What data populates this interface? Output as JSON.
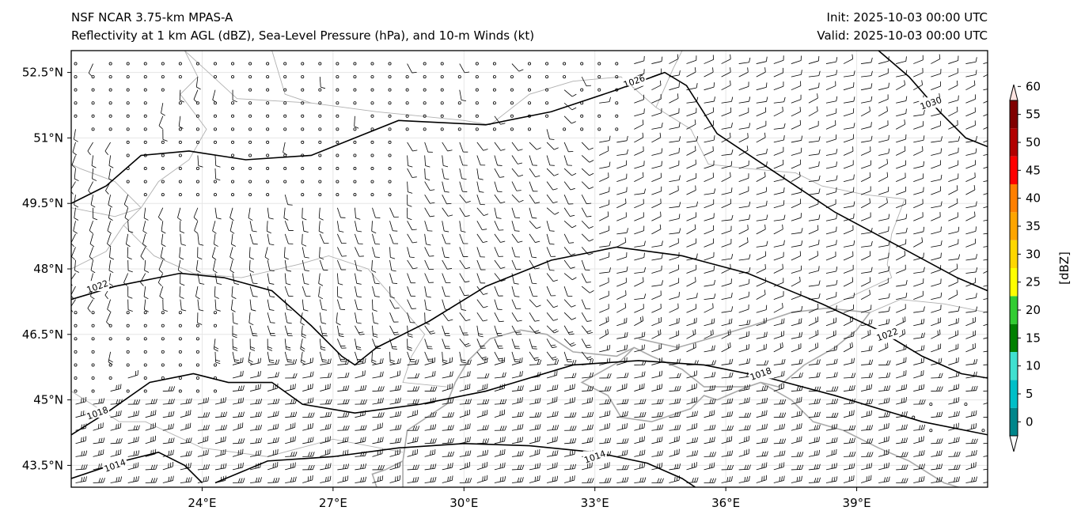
{
  "title": {
    "left_line1": "NSF NCAR 3.75-km MPAS-A",
    "left_line2": "Reflectivity at 1 km AGL (dBZ), Sea-Level Pressure (hPa), and 10-m Winds (kt)",
    "right_line1": "Init: 2025-10-03 00:00 UTC",
    "right_line2": "Valid: 2025-10-03 00:00 UTC"
  },
  "map": {
    "lon_range": [
      21,
      42
    ],
    "lat_range": [
      43,
      53
    ],
    "lat_ticks": [
      {
        "value": 43.5,
        "label": "43.5°N"
      },
      {
        "value": 45.0,
        "label": "45°N"
      },
      {
        "value": 46.5,
        "label": "46.5°N"
      },
      {
        "value": 48.0,
        "label": "48°N"
      },
      {
        "value": 49.5,
        "label": "49.5°N"
      },
      {
        "value": 51.0,
        "label": "51°N"
      },
      {
        "value": 52.5,
        "label": "52.5°N"
      }
    ],
    "lon_ticks": [
      {
        "value": 24,
        "label": "24°E"
      },
      {
        "value": 27,
        "label": "27°E"
      },
      {
        "value": 30,
        "label": "30°E"
      },
      {
        "value": 33,
        "label": "33°E"
      },
      {
        "value": 36,
        "label": "36°E"
      },
      {
        "value": 39,
        "label": "39°E"
      }
    ],
    "isobars": [
      {
        "value": 1026,
        "label": "1026",
        "label_at": [
          33.9,
          52.3
        ],
        "points": [
          [
            21,
            49.5
          ],
          [
            21.8,
            49.9
          ],
          [
            22.6,
            50.6
          ],
          [
            23.7,
            50.7
          ],
          [
            25,
            50.5
          ],
          [
            26.5,
            50.6
          ],
          [
            27.5,
            51.0
          ],
          [
            28.5,
            51.4
          ],
          [
            30.5,
            51.3
          ],
          [
            32,
            51.6
          ],
          [
            33.5,
            52.1
          ],
          [
            34.6,
            52.5
          ],
          [
            35.1,
            52.2
          ],
          [
            35.8,
            51.1
          ],
          [
            37,
            50.3
          ],
          [
            38.5,
            49.3
          ],
          [
            40,
            48.5
          ],
          [
            41.3,
            47.8
          ],
          [
            42,
            47.5
          ]
        ]
      },
      {
        "value": 1030,
        "label": "1030",
        "label_at": [
          40.7,
          51.8
        ],
        "points": [
          [
            39.5,
            53
          ],
          [
            40.2,
            52.4
          ],
          [
            40.9,
            51.6
          ],
          [
            41.5,
            51.0
          ],
          [
            42,
            50.8
          ]
        ]
      },
      {
        "value": 1022,
        "label": "1022",
        "label_at": [
          21.6,
          47.6
        ],
        "points": [
          [
            21,
            47.3
          ],
          [
            22,
            47.6
          ],
          [
            23.5,
            47.9
          ],
          [
            24.5,
            47.8
          ],
          [
            25.6,
            47.5
          ],
          [
            26.5,
            46.7
          ],
          [
            27.2,
            46.0
          ],
          [
            27.5,
            45.8
          ],
          [
            28,
            46.2
          ],
          [
            29.2,
            46.8
          ],
          [
            30.5,
            47.6
          ],
          [
            32,
            48.2
          ],
          [
            33.5,
            48.5
          ],
          [
            35,
            48.3
          ],
          [
            36.5,
            47.9
          ],
          [
            38.2,
            47.2
          ],
          [
            39.5,
            46.6
          ],
          [
            40.5,
            46.0
          ],
          [
            41.4,
            45.6
          ],
          [
            42,
            45.5
          ]
        ]
      },
      {
        "value": 1022,
        "label": "1022",
        "label_at": [
          39.7,
          46.5
        ],
        "points": []
      },
      {
        "value": 1018,
        "label": "1018",
        "label_at": [
          21.6,
          44.7
        ],
        "points": [
          [
            21,
            44.2
          ],
          [
            21.8,
            44.7
          ],
          [
            22.8,
            45.4
          ],
          [
            23.8,
            45.6
          ],
          [
            24.6,
            45.4
          ],
          [
            25.6,
            45.4
          ],
          [
            26.3,
            44.9
          ],
          [
            27.5,
            44.7
          ],
          [
            29,
            44.9
          ],
          [
            30.5,
            45.2
          ],
          [
            32.5,
            45.8
          ],
          [
            34,
            45.9
          ],
          [
            35.5,
            45.8
          ],
          [
            37,
            45.5
          ],
          [
            38.5,
            45.1
          ],
          [
            40.5,
            44.5
          ],
          [
            42,
            44.2
          ]
        ]
      },
      {
        "value": 1018,
        "label": "1018",
        "label_at": [
          36.8,
          45.6
        ],
        "points": []
      },
      {
        "value": 1014,
        "label": "1014",
        "label_at": [
          22.0,
          43.5
        ],
        "points": [
          [
            21,
            43.2
          ],
          [
            22.2,
            43.6
          ],
          [
            23.0,
            43.8
          ],
          [
            23.6,
            43.5
          ],
          [
            24.0,
            43.1
          ]
        ]
      },
      {
        "value": 1014,
        "label": "1014",
        "label_at": [
          33.0,
          43.7
        ],
        "points": [
          [
            24.3,
            43.1
          ],
          [
            25.5,
            43.6
          ],
          [
            27.0,
            43.7
          ],
          [
            28.5,
            43.9
          ],
          [
            30.0,
            44.0
          ],
          [
            31.5,
            43.95
          ],
          [
            33.0,
            43.8
          ],
          [
            34.2,
            43.55
          ],
          [
            35.0,
            43.2
          ],
          [
            35.3,
            43.0
          ]
        ]
      }
    ]
  },
  "colorbar": {
    "label": "[dBZ]",
    "ticks": [
      "0",
      "5",
      "10",
      "15",
      "20",
      "25",
      "30",
      "35",
      "40",
      "45",
      "50",
      "55",
      "60"
    ],
    "colors": [
      "#00868b",
      "#00bfc8",
      "#40e0d0",
      "#008000",
      "#32cd32",
      "#ffff00",
      "#ffd700",
      "#ffa500",
      "#ff7f00",
      "#ff0000",
      "#b20000",
      "#800000",
      "#ff00ff",
      "#ffe4e1"
    ]
  }
}
